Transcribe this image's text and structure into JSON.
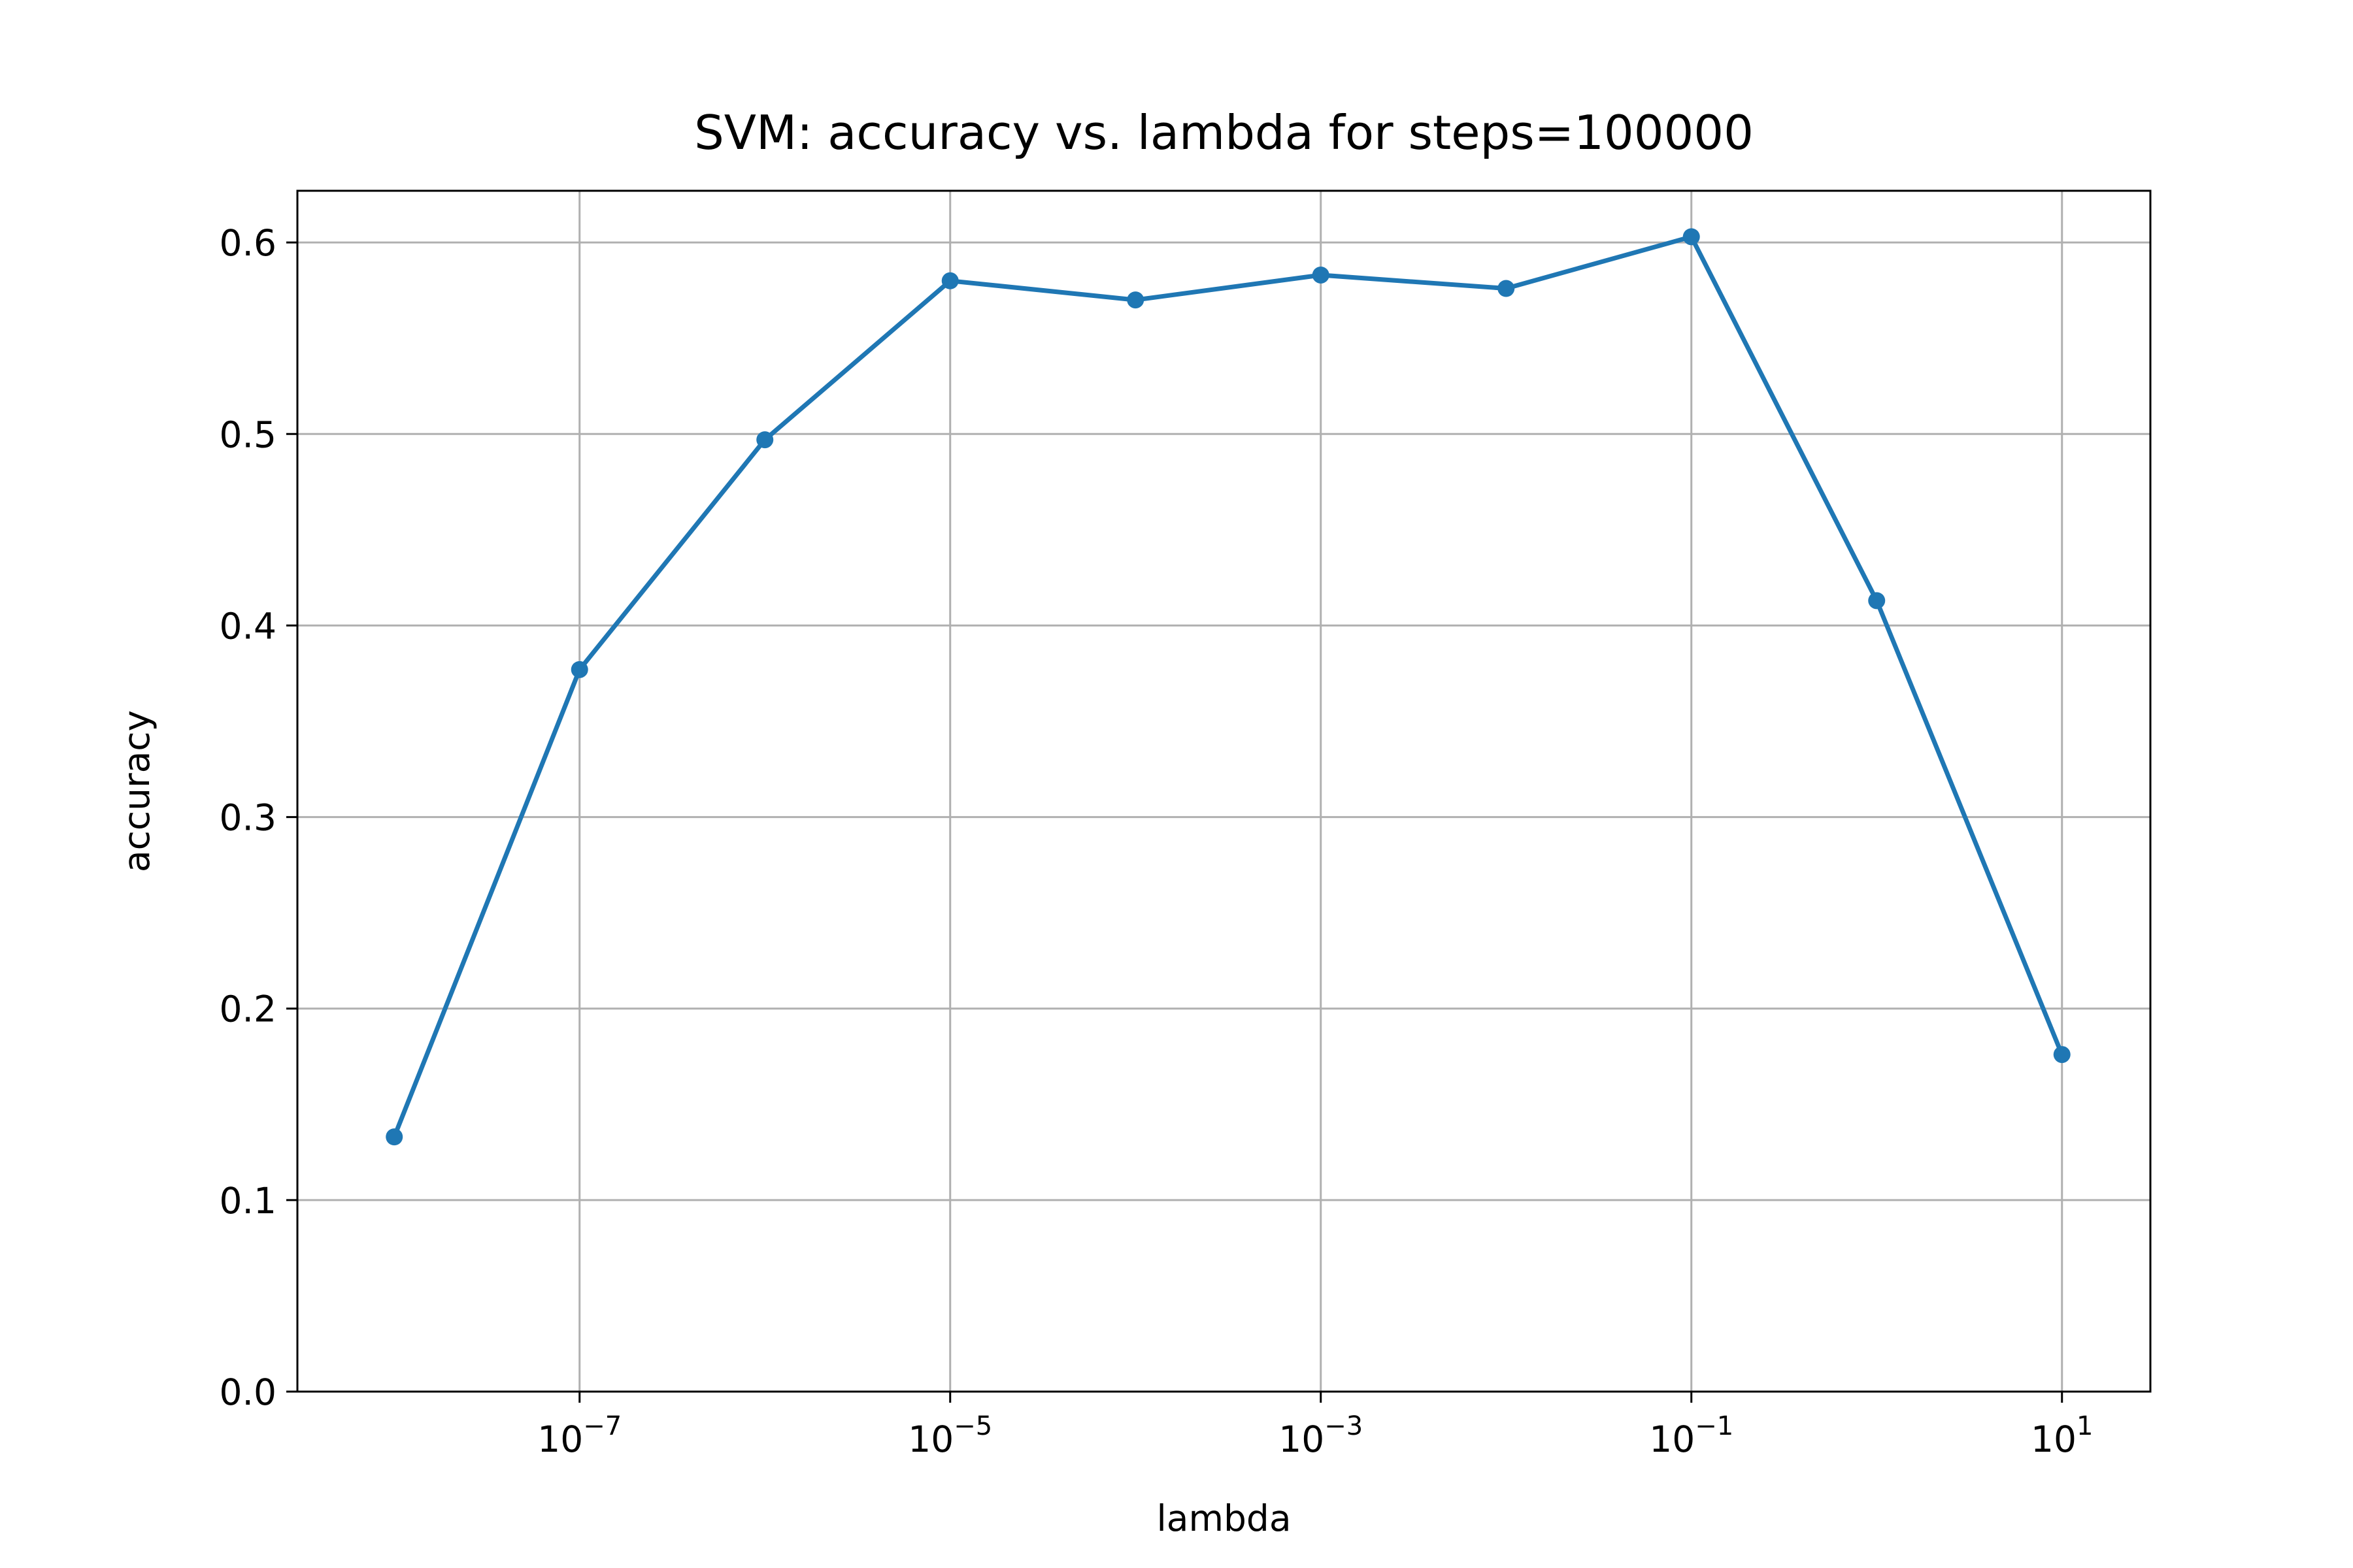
{
  "chart_data": {
    "type": "line",
    "title": "SVM: accuracy vs. lambda for steps=100000",
    "xlabel": "lambda",
    "ylabel": "accuracy",
    "xscale": "log",
    "xlim": [
      3e-09,
      30
    ],
    "ylim": [
      0.0,
      0.627
    ],
    "grid": true,
    "x_ticks": [
      {
        "value": 1e-07,
        "base": "10",
        "exp": "−7"
      },
      {
        "value": 1e-05,
        "base": "10",
        "exp": "−5"
      },
      {
        "value": 0.001,
        "base": "10",
        "exp": "−3"
      },
      {
        "value": 0.1,
        "base": "10",
        "exp": "−1"
      },
      {
        "value": 10,
        "base": "10",
        "exp": "1"
      }
    ],
    "y_ticks": [
      {
        "value": 0.0,
        "label": "0.0"
      },
      {
        "value": 0.1,
        "label": "0.1"
      },
      {
        "value": 0.2,
        "label": "0.2"
      },
      {
        "value": 0.3,
        "label": "0.3"
      },
      {
        "value": 0.4,
        "label": "0.4"
      },
      {
        "value": 0.5,
        "label": "0.5"
      },
      {
        "value": 0.6,
        "label": "0.6"
      }
    ],
    "series": [
      {
        "color": "#1f77b4",
        "marker": "circle",
        "x": [
          1e-08,
          1e-07,
          1e-06,
          1e-05,
          0.0001,
          0.001,
          0.01,
          0.1,
          1,
          10
        ],
        "y": [
          0.133,
          0.377,
          0.497,
          0.58,
          0.57,
          0.583,
          0.576,
          0.603,
          0.413,
          0.176
        ]
      }
    ],
    "colors": {
      "grid": "#b0b0b0",
      "axes": "#000000",
      "line": "#1f77b4"
    }
  }
}
